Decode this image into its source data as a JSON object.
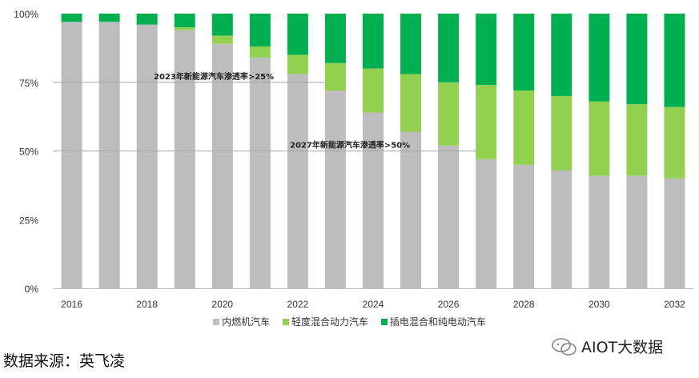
{
  "chart_data": {
    "type": "bar",
    "stacked": true,
    "categories": [
      "2016",
      "2017",
      "2018",
      "2019",
      "2020",
      "2021",
      "2022",
      "2023",
      "2024",
      "2025",
      "2026",
      "2027",
      "2028",
      "2029",
      "2030",
      "2031",
      "2032"
    ],
    "x_tick_labels": [
      "2016",
      "2018",
      "2020",
      "2022",
      "2024",
      "2026",
      "2028",
      "2030",
      "2032"
    ],
    "y_tick_labels": [
      "0%",
      "25%",
      "50%",
      "75%",
      "100%"
    ],
    "ylim": [
      0,
      100
    ],
    "series": [
      {
        "name": "内燃机汽车",
        "color": "#bdbdbd",
        "values": [
          97,
          97,
          96,
          94,
          89,
          84,
          78,
          72,
          64,
          57,
          52,
          47,
          45,
          43,
          41,
          41,
          40
        ]
      },
      {
        "name": "轻度混合动力汽车",
        "color": "#92d050",
        "values": [
          0,
          0,
          0,
          1,
          3,
          4,
          7,
          10,
          16,
          21,
          23,
          27,
          27,
          27,
          27,
          26,
          26
        ]
      },
      {
        "name": "插电混合和纯电动汽车",
        "color": "#00b050",
        "values": [
          3,
          3,
          4,
          5,
          8,
          12,
          15,
          18,
          20,
          22,
          25,
          26,
          28,
          30,
          32,
          33,
          34
        ]
      }
    ],
    "annotations": [
      {
        "text": "2023年新能源汽车渗透率>25%",
        "y": 75
      },
      {
        "text": "2027年新能源汽车渗透率>50%",
        "y": 50
      }
    ],
    "legend_position": "bottom"
  },
  "source_text": "数据来源：英飞凌",
  "watermark_text": "AIOT大数据"
}
